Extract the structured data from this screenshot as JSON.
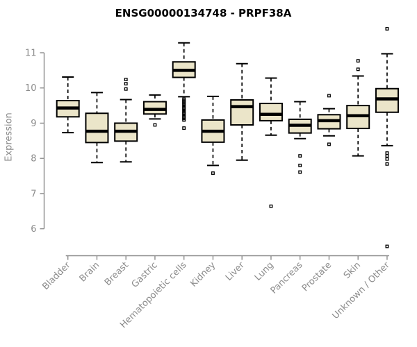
{
  "colors": {
    "background": "#ffffff",
    "box_fill": "#ebe5c9",
    "box_border": "#000000",
    "median": "#000000",
    "whisker": "#000000",
    "axis": "#8b8b8b",
    "tick_text": "#8b8b8b",
    "title_text": "#000000"
  },
  "chart_data": {
    "type": "boxplot",
    "title": "ENSG00000134748 - PRPF38A",
    "ylabel": "Expression",
    "xlabel": "",
    "ylim": [
      5.4,
      11.8
    ],
    "yticks": [
      6,
      7,
      8,
      9,
      10,
      11
    ],
    "grid": false,
    "legend": "none",
    "categories": [
      "Bladder",
      "Brain",
      "Breast",
      "Gastric",
      "Hematopoietic cells",
      "Kidney",
      "Liver",
      "Lung",
      "Pancreas",
      "Prostate",
      "Skin",
      "Unknown / Other"
    ],
    "series": [
      {
        "name": "Bladder",
        "whisker_low": 8.73,
        "q1": 9.18,
        "median": 9.43,
        "q3": 9.64,
        "whisker_high": 10.31,
        "outliers": []
      },
      {
        "name": "Brain",
        "whisker_low": 7.88,
        "q1": 8.45,
        "median": 8.77,
        "q3": 9.28,
        "whisker_high": 9.87,
        "outliers": []
      },
      {
        "name": "Breast",
        "whisker_low": 7.9,
        "q1": 8.49,
        "median": 8.77,
        "q3": 9.0,
        "whisker_high": 9.67,
        "outliers": [
          10.24,
          10.12,
          9.97
        ]
      },
      {
        "name": "Gastric",
        "whisker_low": 9.12,
        "q1": 9.26,
        "median": 9.39,
        "q3": 9.61,
        "whisker_high": 9.8,
        "outliers": [
          8.95
        ]
      },
      {
        "name": "Hematopoietic cells",
        "whisker_low": 9.75,
        "q1": 10.3,
        "median": 10.5,
        "q3": 10.74,
        "whisker_high": 11.28,
        "outliers": [
          9.68,
          9.64,
          9.6,
          9.56,
          9.52,
          9.47,
          9.43,
          9.39,
          9.34,
          9.3,
          9.26,
          9.21,
          9.17,
          9.13,
          9.09,
          8.86
        ]
      },
      {
        "name": "Kidney",
        "whisker_low": 7.8,
        "q1": 8.46,
        "median": 8.77,
        "q3": 9.09,
        "whisker_high": 9.76,
        "outliers": [
          7.58
        ]
      },
      {
        "name": "Liver",
        "whisker_low": 7.95,
        "q1": 8.95,
        "median": 9.47,
        "q3": 9.66,
        "whisker_high": 10.69,
        "outliers": []
      },
      {
        "name": "Lung",
        "whisker_low": 8.66,
        "q1": 9.07,
        "median": 9.25,
        "q3": 9.56,
        "whisker_high": 10.28,
        "outliers": [
          6.64
        ]
      },
      {
        "name": "Pancreas",
        "whisker_low": 8.56,
        "q1": 8.72,
        "median": 8.94,
        "q3": 9.11,
        "whisker_high": 9.61,
        "outliers": [
          8.07,
          7.8,
          7.61
        ]
      },
      {
        "name": "Prostate",
        "whisker_low": 8.64,
        "q1": 8.84,
        "median": 9.07,
        "q3": 9.24,
        "whisker_high": 9.41,
        "outliers": [
          9.78,
          8.4
        ]
      },
      {
        "name": "Skin",
        "whisker_low": 8.07,
        "q1": 8.85,
        "median": 9.21,
        "q3": 9.5,
        "whisker_high": 10.34,
        "outliers": [
          10.77,
          10.53
        ]
      },
      {
        "name": "Unknown / Other",
        "whisker_low": 8.36,
        "q1": 9.31,
        "median": 9.69,
        "q3": 9.98,
        "whisker_high": 10.97,
        "outliers": [
          11.68,
          8.15,
          8.07,
          7.98,
          7.84,
          5.5
        ]
      }
    ]
  }
}
